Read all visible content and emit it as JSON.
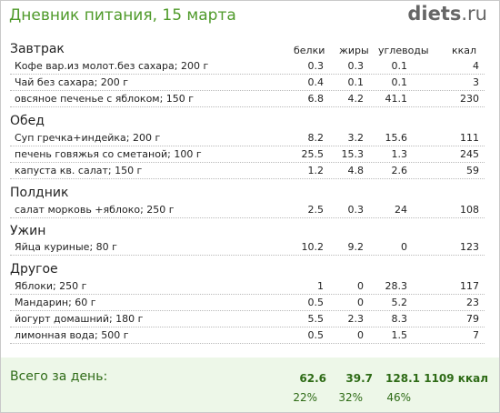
{
  "header": {
    "title": "Дневник питания, 15 марта",
    "brand_main": "diets",
    "brand_tld": ".ru"
  },
  "columns": [
    "белки",
    "жиры",
    "углеводы",
    "ккал"
  ],
  "meals": [
    {
      "name": "Завтрак",
      "items": [
        {
          "food": "Кофе вар.из молот.без сахара; 200 г",
          "protein": "0.3",
          "fat": "0.3",
          "carbs": "0.1",
          "kcal": "4"
        },
        {
          "food": "Чай без сахара; 200 г",
          "protein": "0.4",
          "fat": "0.1",
          "carbs": "0.1",
          "kcal": "3"
        },
        {
          "food": "овсяное печенье с яблоком; 150 г",
          "protein": "6.8",
          "fat": "4.2",
          "carbs": "41.1",
          "kcal": "230"
        }
      ]
    },
    {
      "name": "Обед",
      "items": [
        {
          "food": "Суп гречка+индейка; 200 г",
          "protein": "8.2",
          "fat": "3.2",
          "carbs": "15.6",
          "kcal": "111"
        },
        {
          "food": "печень говяжья со сметаной; 100 г",
          "protein": "25.5",
          "fat": "15.3",
          "carbs": "1.3",
          "kcal": "245"
        },
        {
          "food": "капуста кв. салат; 150 г",
          "protein": "1.2",
          "fat": "4.8",
          "carbs": "2.6",
          "kcal": "59"
        }
      ]
    },
    {
      "name": "Полдник",
      "items": [
        {
          "food": "салат морковь +яблоко; 250 г",
          "protein": "2.5",
          "fat": "0.3",
          "carbs": "24",
          "kcal": "108"
        }
      ]
    },
    {
      "name": "Ужин",
      "items": [
        {
          "food": "Яйца куриные; 80 г",
          "protein": "10.2",
          "fat": "9.2",
          "carbs": "0",
          "kcal": "123"
        }
      ]
    },
    {
      "name": "Другое",
      "items": [
        {
          "food": "Яблоки; 250 г",
          "protein": "1",
          "fat": "0",
          "carbs": "28.3",
          "kcal": "117"
        },
        {
          "food": "Мандарин; 60 г",
          "protein": "0.5",
          "fat": "0",
          "carbs": "5.2",
          "kcal": "23"
        },
        {
          "food": "йогурт домашний; 180 г",
          "protein": "5.5",
          "fat": "2.3",
          "carbs": "8.3",
          "kcal": "79"
        },
        {
          "food": "лимонная вода; 500 г",
          "protein": "0.5",
          "fat": "0",
          "carbs": "1.5",
          "kcal": "7"
        }
      ]
    }
  ],
  "totals": {
    "label": "Всего за день:",
    "protein": "62.6",
    "fat": "39.7",
    "carbs": "128.1",
    "kcal": "1109 ккал",
    "protein_pct": "22%",
    "fat_pct": "32%",
    "carbs_pct": "46%"
  }
}
